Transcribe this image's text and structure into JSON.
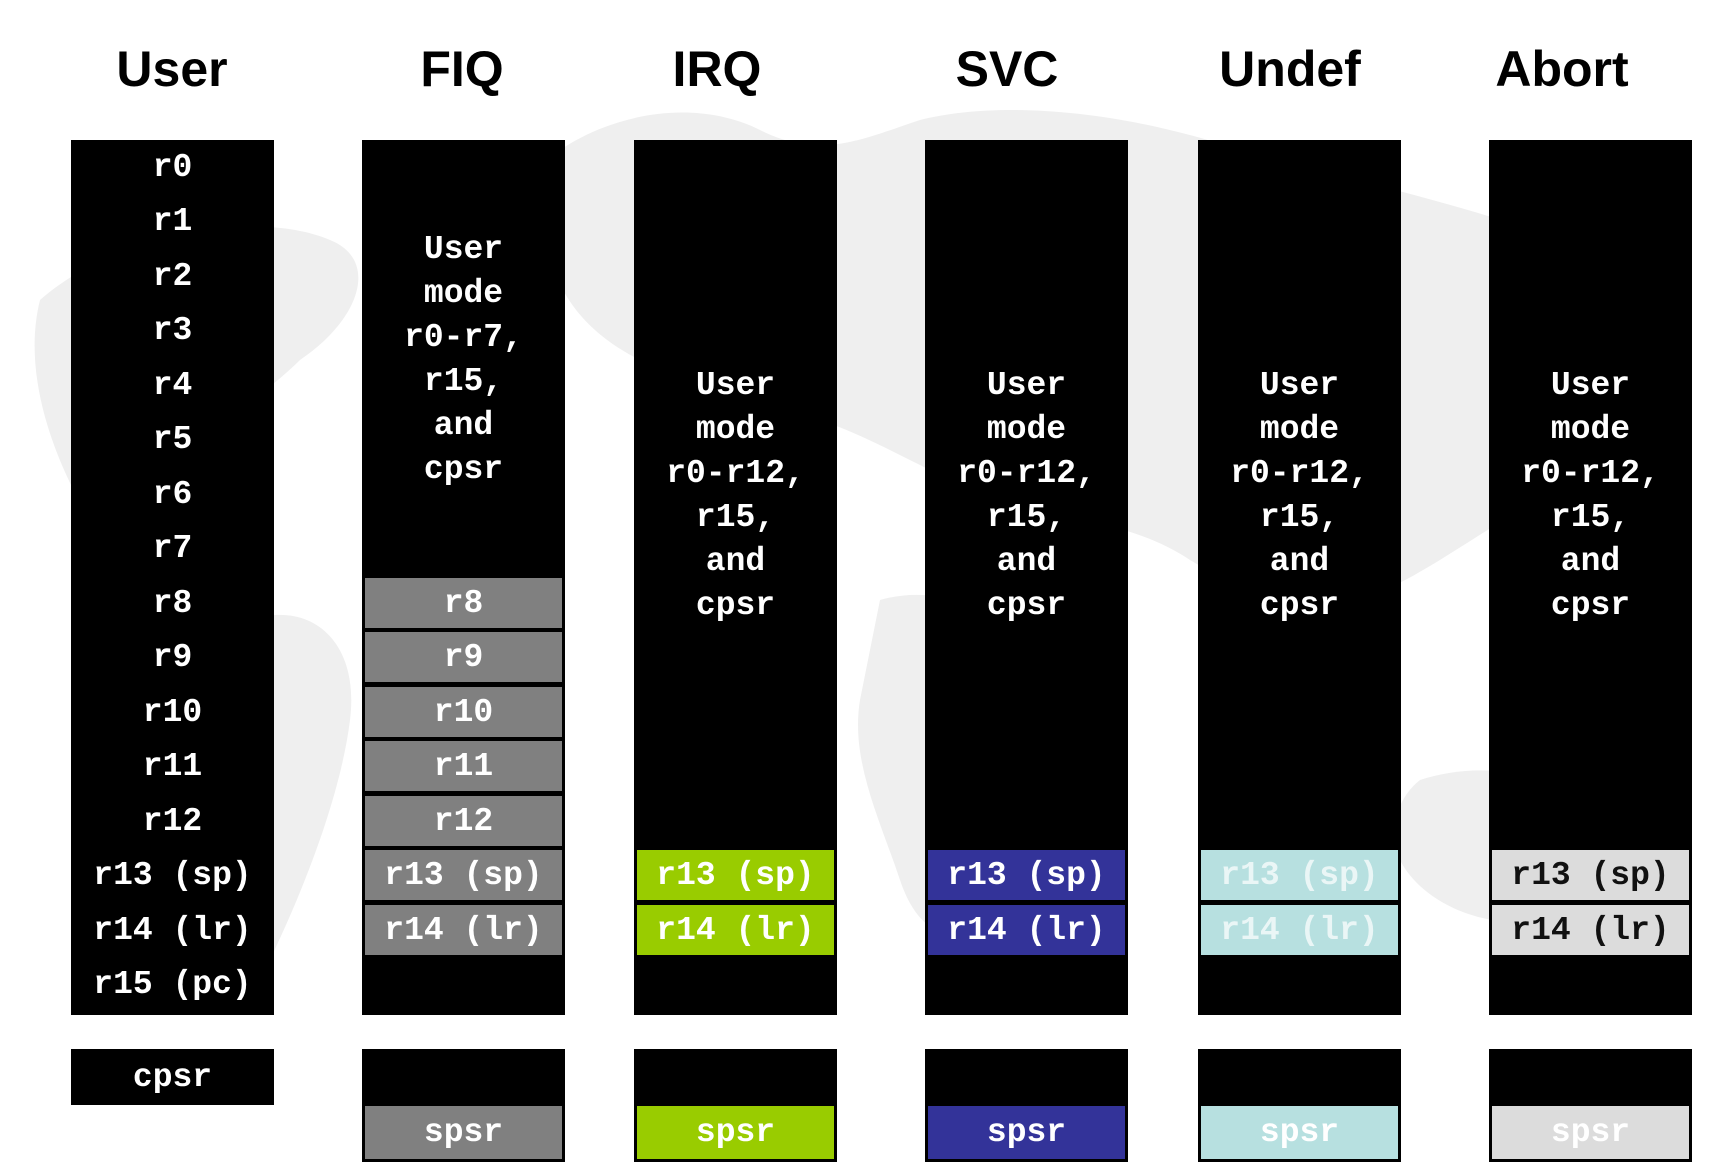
{
  "modes": {
    "user": {
      "title": "User",
      "registers": [
        "r0",
        "r1",
        "r2",
        "r3",
        "r4",
        "r5",
        "r6",
        "r7",
        "r8",
        "r9",
        "r10",
        "r11",
        "r12",
        "r13 (sp)",
        "r14 (lr)",
        "r15 (pc)"
      ],
      "status": "cpsr"
    },
    "fiq": {
      "title": "FIQ",
      "shared_text": "User\nmode\nr0-r7,\nr15,\nand\ncpsr",
      "banked": [
        "r8",
        "r9",
        "r10",
        "r11",
        "r12",
        "r13 (sp)",
        "r14 (lr)"
      ],
      "status": "spsr",
      "color": "#808080"
    },
    "irq": {
      "title": "IRQ",
      "shared_text": "User\nmode\nr0-r12,\nr15,\nand\ncpsr",
      "banked": [
        "r13 (sp)",
        "r14 (lr)"
      ],
      "status": "spsr",
      "color": "#99cc00"
    },
    "svc": {
      "title": "SVC",
      "shared_text": "User\nmode\nr0-r12,\nr15,\nand\ncpsr",
      "banked": [
        "r13 (sp)",
        "r14 (lr)"
      ],
      "status": "spsr",
      "color": "#333399"
    },
    "undef": {
      "title": "Undef",
      "shared_text": "User\nmode\nr0-r12,\nr15,\nand\ncpsr",
      "banked": [
        "r13 (sp)",
        "r14 (lr)"
      ],
      "status": "spsr",
      "color": "#b7e0e0"
    },
    "abort": {
      "title": "Abort",
      "shared_text": "User\nmode\nr0-r12,\nr15,\nand\ncpsr",
      "banked": [
        "r13 (sp)",
        "r14 (lr)"
      ],
      "status": "spsr",
      "color": "#dcdcdc"
    }
  }
}
